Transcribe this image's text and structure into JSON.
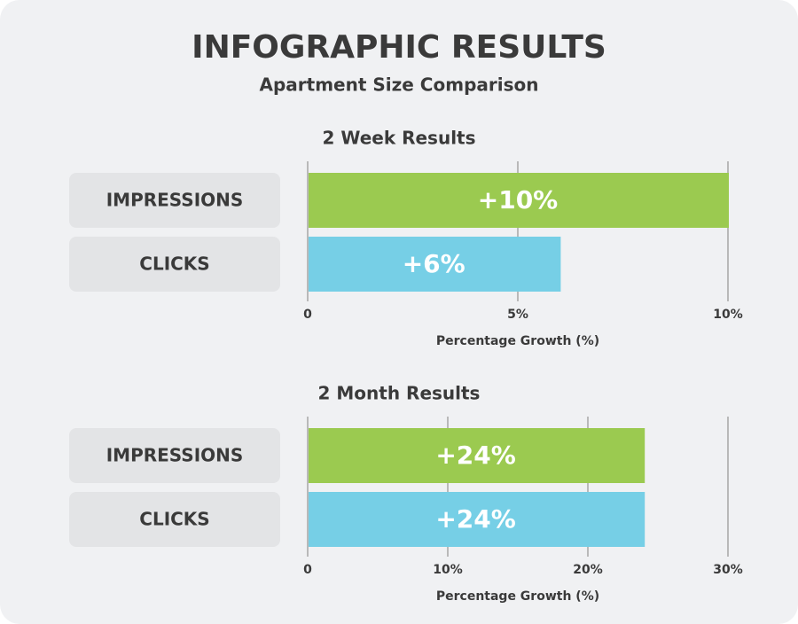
{
  "title": "INFOGRAPHIC RESULTS",
  "subtitle": "Apartment Size Comparison",
  "chart_data": [
    {
      "type": "bar",
      "orientation": "horizontal",
      "title": "2 Week Results",
      "categories": [
        "IMPRESSIONS",
        "CLICKS"
      ],
      "values": [
        10,
        6
      ],
      "value_labels": [
        "+10%",
        "+6%"
      ],
      "colors": [
        "#9bca50",
        "#76cfe6"
      ],
      "xlim": [
        0,
        10
      ],
      "xticks": [
        0,
        {
          "value": 5,
          "label": "5%"
        },
        {
          "value": 10,
          "label": "10%"
        }
      ],
      "xlabel": "Percentage Growth (%)",
      "grid": true
    },
    {
      "type": "bar",
      "orientation": "horizontal",
      "title": "2 Month Results",
      "categories": [
        "IMPRESSIONS",
        "CLICKS"
      ],
      "values": [
        24,
        24
      ],
      "value_labels": [
        "+24%",
        "+24%"
      ],
      "colors": [
        "#9bca50",
        "#76cfe6"
      ],
      "xlim": [
        0,
        30
      ],
      "xticks": [
        0,
        {
          "value": 10,
          "label": "10%"
        },
        {
          "value": 20,
          "label": "20%"
        },
        {
          "value": 30,
          "label": "30%"
        }
      ],
      "xlabel": "Percentage Growth (%)",
      "grid": true
    }
  ]
}
